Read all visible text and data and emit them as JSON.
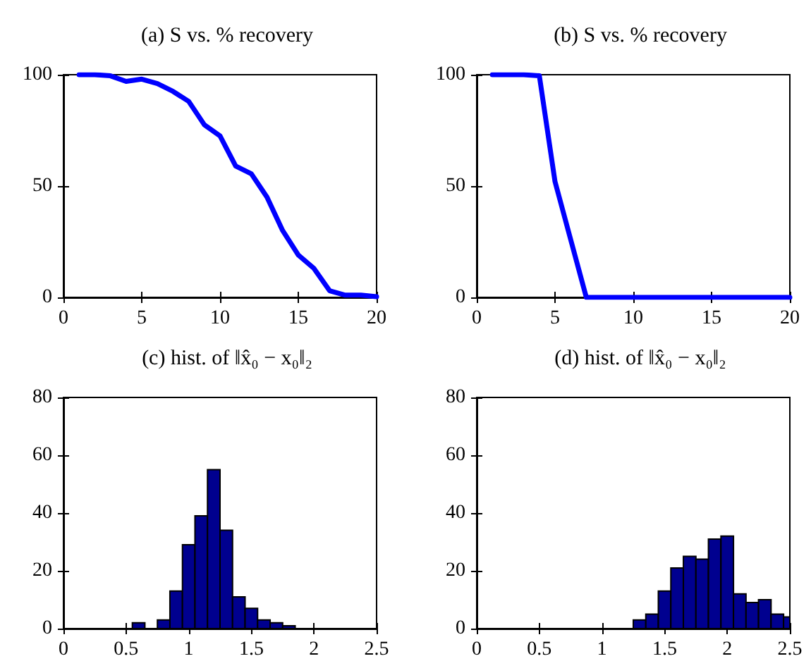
{
  "chart_data": [
    {
      "type": "line",
      "title": "(a) S vs. % recovery",
      "x": [
        1,
        2,
        3,
        4,
        5,
        6,
        7,
        8,
        9,
        10,
        11,
        12,
        13,
        14,
        15,
        16,
        17,
        18,
        19,
        20
      ],
      "values": [
        100,
        100,
        99.5,
        97,
        98,
        96,
        92.5,
        88,
        77.5,
        72.5,
        59,
        55.5,
        45,
        30,
        19,
        13,
        3,
        1,
        1,
        0.3
      ],
      "color": "#0000ff",
      "xlim": [
        0,
        20
      ],
      "ylim": [
        0,
        100
      ],
      "xticks": [
        0,
        5,
        10,
        15,
        20
      ],
      "yticks": [
        0,
        50,
        100
      ]
    },
    {
      "type": "line",
      "title": "(b) S vs. % recovery",
      "x": [
        1,
        2,
        3,
        4,
        5,
        6,
        7,
        8,
        9,
        10,
        11,
        12,
        13,
        14,
        15,
        16,
        17,
        18,
        19,
        20
      ],
      "values": [
        100,
        100,
        100,
        99.5,
        52,
        26,
        0,
        0,
        0,
        0,
        0,
        0,
        0,
        0,
        0,
        0,
        0,
        0,
        0,
        0
      ],
      "color": "#0000ff",
      "xlim": [
        0,
        20
      ],
      "ylim": [
        0,
        100
      ],
      "xticks": [
        0,
        5,
        10,
        15,
        20
      ],
      "yticks": [
        0,
        50,
        100
      ]
    },
    {
      "type": "histogram",
      "title": "(c) hist. of ‖x̂₀ − x₀‖₂",
      "bins": [
        0.55,
        0.65,
        0.75,
        0.85,
        0.95,
        1.05,
        1.15,
        1.25,
        1.35,
        1.45,
        1.55,
        1.65,
        1.75,
        1.85
      ],
      "values": [
        2,
        0,
        3,
        13,
        29,
        39,
        55,
        34,
        11,
        7,
        3,
        2,
        1
      ],
      "color": "#00008f",
      "xlim": [
        0,
        2.5
      ],
      "ylim": [
        0,
        80
      ],
      "xticks": [
        0,
        0.5,
        1,
        1.5,
        2,
        2.5
      ],
      "yticks": [
        0,
        20,
        40,
        60,
        80
      ]
    },
    {
      "type": "histogram",
      "title": "(d) hist. of ‖x̂₀ − x₀‖₂",
      "bins": [
        1.25,
        1.35,
        1.45,
        1.55,
        1.65,
        1.75,
        1.85,
        1.95,
        2.05,
        2.15,
        2.25,
        2.35,
        2.45,
        2.5
      ],
      "values": [
        3,
        5,
        13,
        21,
        25,
        24,
        31,
        32,
        12,
        9,
        10,
        5,
        4
      ],
      "color": "#00008f",
      "xlim": [
        0,
        2.5
      ],
      "ylim": [
        0,
        80
      ],
      "xticks": [
        0,
        0.5,
        1,
        1.5,
        2,
        2.5
      ],
      "yticks": [
        0,
        20,
        40,
        60,
        80
      ]
    }
  ]
}
